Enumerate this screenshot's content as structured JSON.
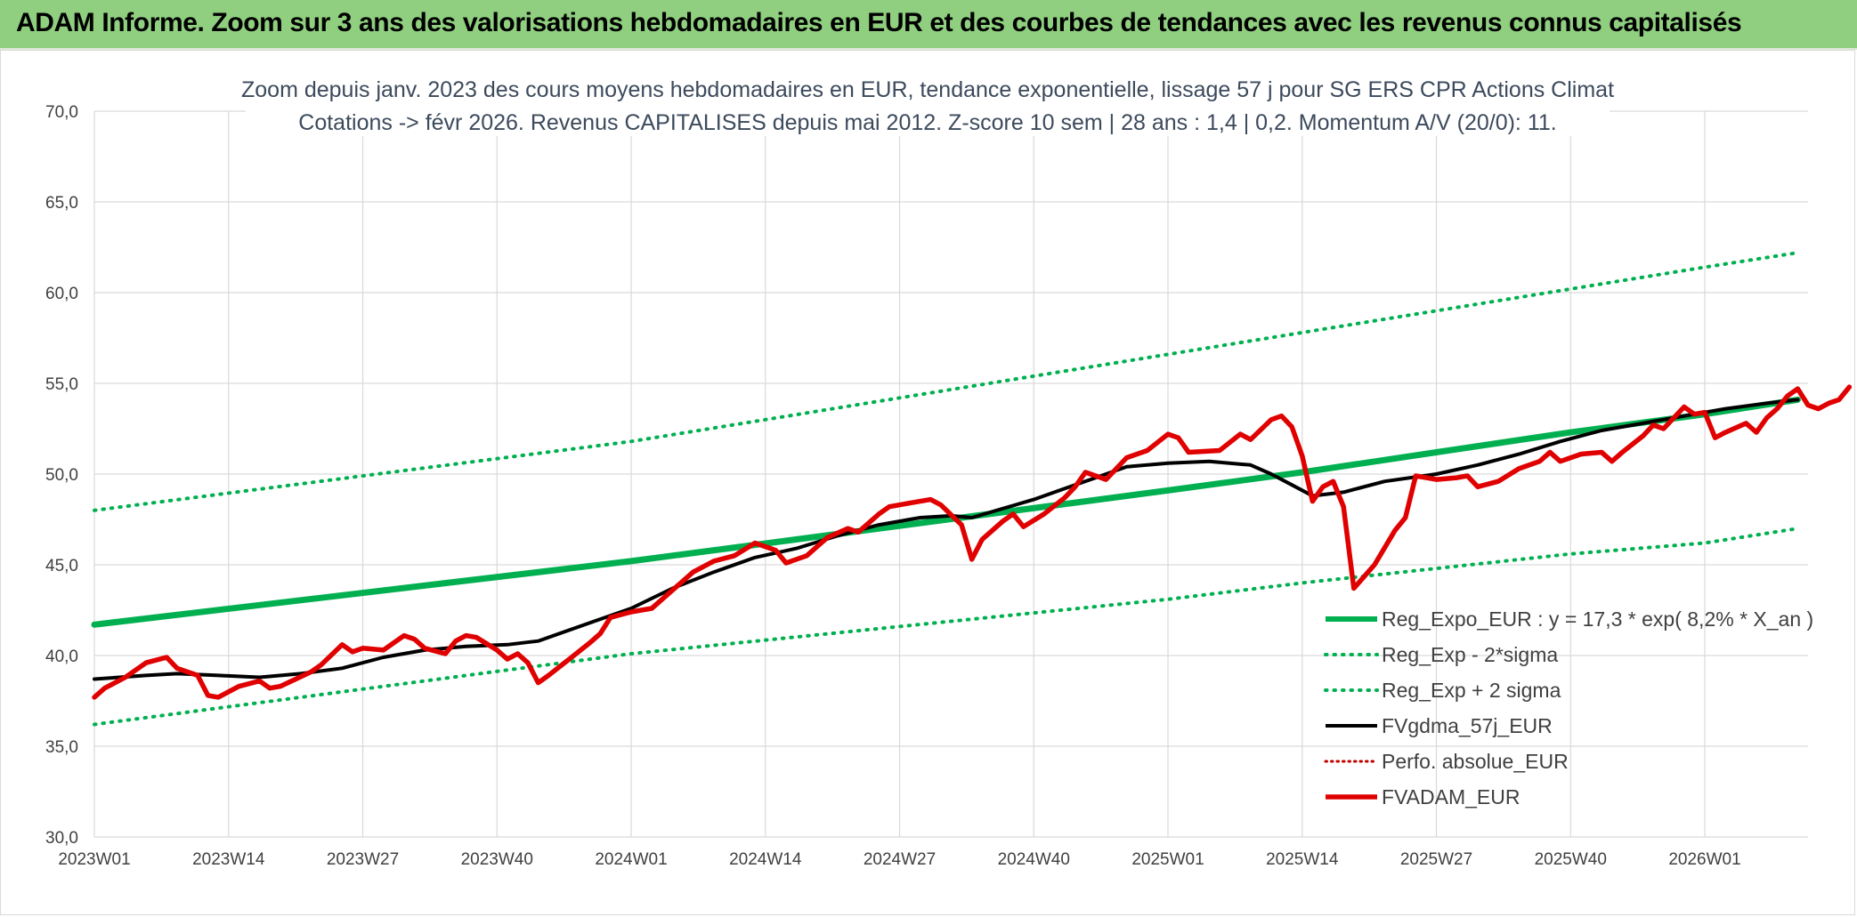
{
  "header": {
    "title": "ADAM Informe. Zoom sur 3 ans des valorisations hebdomadaires en EUR et des courbes de tendances avec les revenus connus capitalisés"
  },
  "colors": {
    "header_bg": "#8fcf7f",
    "regression": "#00b050",
    "bands": "#00b050",
    "smoothed": "#000000",
    "fvadam": "#e00000",
    "perf_absolue": "#c00000"
  },
  "chart_data": {
    "type": "line",
    "title": "Zoom depuis janv. 2023 des cours moyens hebdomadaires en EUR, tendance exponentielle, lissage 57 j pour SG ERS CPR Actions Climat",
    "subtitle": "Cotations -> févr 2026. Revenus CAPITALISES depuis mai 2012. Z-score 10 sem | 28 ans : 1,4 | 0,2. Momentum A/V (20/0): 11.",
    "ylim": [
      30,
      70
    ],
    "yticks": [
      "30,0",
      "35,0",
      "40,0",
      "45,0",
      "50,0",
      "55,0",
      "60,0",
      "65,0",
      "70,0"
    ],
    "x_range_weeks": [
      0,
      166
    ],
    "xticks": [
      {
        "label": "2023W01",
        "week": 0
      },
      {
        "label": "2023W14",
        "week": 13
      },
      {
        "label": "2023W27",
        "week": 26
      },
      {
        "label": "2023W40",
        "week": 39
      },
      {
        "label": "2024W01",
        "week": 52
      },
      {
        "label": "2024W14",
        "week": 65
      },
      {
        "label": "2024W27",
        "week": 78
      },
      {
        "label": "2024W40",
        "week": 91
      },
      {
        "label": "2025W01",
        "week": 104
      },
      {
        "label": "2025W14",
        "week": 117
      },
      {
        "label": "2025W27",
        "week": 130
      },
      {
        "label": "2025W40",
        "week": 143
      },
      {
        "label": "2026W01",
        "week": 156
      }
    ],
    "grid": true,
    "legend_position": "bottom-right",
    "series": [
      {
        "name": "Reg_Expo_EUR : y = 17,3 * exp( 8,2% *  X_an )",
        "style": "thick-solid",
        "points": [
          [
            0,
            41.7
          ],
          [
            52,
            45.2
          ],
          [
            104,
            49.1
          ],
          [
            117,
            50.1
          ],
          [
            130,
            51.2
          ],
          [
            143,
            52.3
          ],
          [
            156,
            53.3
          ],
          [
            165,
            54.1
          ]
        ]
      },
      {
        "name": "Reg_Exp - 2*sigma",
        "style": "dotted",
        "points": [
          [
            0,
            36.2
          ],
          [
            52,
            40.1
          ],
          [
            104,
            43.1
          ],
          [
            117,
            44.0
          ],
          [
            130,
            44.8
          ],
          [
            143,
            45.6
          ],
          [
            156,
            46.2
          ],
          [
            165,
            47.0
          ]
        ]
      },
      {
        "name": "Reg_Exp + 2 sigma",
        "style": "dotted",
        "points": [
          [
            0,
            48.0
          ],
          [
            52,
            51.8
          ],
          [
            104,
            56.6
          ],
          [
            117,
            57.8
          ],
          [
            130,
            59.0
          ],
          [
            143,
            60.2
          ],
          [
            156,
            61.4
          ],
          [
            165,
            62.2
          ]
        ]
      },
      {
        "name": "FVgdma_57j_EUR",
        "style": "solid",
        "points": [
          [
            0,
            38.7
          ],
          [
            5,
            38.9
          ],
          [
            8,
            39.0
          ],
          [
            12,
            38.9
          ],
          [
            16,
            38.8
          ],
          [
            20,
            39.0
          ],
          [
            24,
            39.3
          ],
          [
            28,
            39.9
          ],
          [
            32,
            40.3
          ],
          [
            36,
            40.5
          ],
          [
            40,
            40.6
          ],
          [
            43,
            40.8
          ],
          [
            48,
            41.8
          ],
          [
            52,
            42.6
          ],
          [
            56,
            43.7
          ],
          [
            60,
            44.6
          ],
          [
            64,
            45.4
          ],
          [
            68,
            45.9
          ],
          [
            72,
            46.6
          ],
          [
            76,
            47.2
          ],
          [
            80,
            47.6
          ],
          [
            83,
            47.7
          ],
          [
            85,
            47.6
          ],
          [
            88,
            48.1
          ],
          [
            91,
            48.6
          ],
          [
            94,
            49.2
          ],
          [
            97,
            49.8
          ],
          [
            100,
            50.4
          ],
          [
            104,
            50.6
          ],
          [
            108,
            50.7
          ],
          [
            112,
            50.5
          ],
          [
            114,
            50.0
          ],
          [
            116,
            49.4
          ],
          [
            118,
            48.8
          ],
          [
            121,
            49.0
          ],
          [
            125,
            49.6
          ],
          [
            130,
            50.0
          ],
          [
            134,
            50.5
          ],
          [
            138,
            51.1
          ],
          [
            142,
            51.8
          ],
          [
            146,
            52.4
          ],
          [
            150,
            52.8
          ],
          [
            154,
            53.2
          ],
          [
            158,
            53.6
          ],
          [
            162,
            53.9
          ],
          [
            165,
            54.1
          ]
        ]
      },
      {
        "name": "Perfo. absolue_EUR",
        "style": "dotted"
      },
      {
        "name": "FVADAM_EUR",
        "style": "thick-solid",
        "points": [
          [
            0,
            37.7
          ],
          [
            1,
            38.2
          ],
          [
            3,
            38.8
          ],
          [
            5,
            39.6
          ],
          [
            7,
            39.9
          ],
          [
            8,
            39.3
          ],
          [
            10,
            38.9
          ],
          [
            11,
            37.8
          ],
          [
            12,
            37.7
          ],
          [
            14,
            38.3
          ],
          [
            16,
            38.6
          ],
          [
            17,
            38.2
          ],
          [
            18,
            38.3
          ],
          [
            21,
            39.1
          ],
          [
            22,
            39.5
          ],
          [
            24,
            40.6
          ],
          [
            25,
            40.2
          ],
          [
            26,
            40.4
          ],
          [
            28,
            40.3
          ],
          [
            30,
            41.1
          ],
          [
            31,
            40.9
          ],
          [
            32,
            40.4
          ],
          [
            34,
            40.1
          ],
          [
            35,
            40.8
          ],
          [
            36,
            41.1
          ],
          [
            37,
            41.0
          ],
          [
            39,
            40.3
          ],
          [
            40,
            39.8
          ],
          [
            41,
            40.1
          ],
          [
            42,
            39.6
          ],
          [
            43,
            38.5
          ],
          [
            44,
            38.9
          ],
          [
            46,
            39.8
          ],
          [
            48,
            40.7
          ],
          [
            49,
            41.2
          ],
          [
            50,
            42.1
          ],
          [
            52,
            42.4
          ],
          [
            54,
            42.6
          ],
          [
            56,
            43.6
          ],
          [
            58,
            44.6
          ],
          [
            60,
            45.2
          ],
          [
            62,
            45.5
          ],
          [
            64,
            46.2
          ],
          [
            65,
            46.0
          ],
          [
            66,
            45.8
          ],
          [
            67,
            45.1
          ],
          [
            69,
            45.5
          ],
          [
            71,
            46.5
          ],
          [
            73,
            47.0
          ],
          [
            74,
            46.8
          ],
          [
            76,
            47.8
          ],
          [
            77,
            48.2
          ],
          [
            79,
            48.4
          ],
          [
            81,
            48.6
          ],
          [
            82,
            48.3
          ],
          [
            84,
            47.2
          ],
          [
            85,
            45.3
          ],
          [
            86,
            46.4
          ],
          [
            88,
            47.4
          ],
          [
            89,
            47.8
          ],
          [
            90,
            47.1
          ],
          [
            92,
            47.8
          ],
          [
            94,
            48.7
          ],
          [
            95,
            49.3
          ],
          [
            96,
            50.1
          ],
          [
            98,
            49.7
          ],
          [
            100,
            50.9
          ],
          [
            102,
            51.3
          ],
          [
            104,
            52.2
          ],
          [
            105,
            52.0
          ],
          [
            106,
            51.2
          ],
          [
            109,
            51.3
          ],
          [
            111,
            52.2
          ],
          [
            112,
            51.9
          ],
          [
            114,
            53.0
          ],
          [
            115,
            53.2
          ],
          [
            116,
            52.6
          ],
          [
            117,
            51.0
          ],
          [
            118,
            48.5
          ],
          [
            119,
            49.3
          ],
          [
            120,
            49.6
          ],
          [
            121,
            48.2
          ],
          [
            122,
            43.7
          ],
          [
            124,
            45.0
          ],
          [
            126,
            46.9
          ],
          [
            127,
            47.6
          ],
          [
            128,
            49.9
          ],
          [
            130,
            49.7
          ],
          [
            132,
            49.8
          ],
          [
            133,
            49.9
          ],
          [
            134,
            49.3
          ],
          [
            136,
            49.6
          ],
          [
            138,
            50.3
          ],
          [
            140,
            50.7
          ],
          [
            141,
            51.2
          ],
          [
            142,
            50.7
          ],
          [
            144,
            51.1
          ],
          [
            146,
            51.2
          ],
          [
            147,
            50.7
          ],
          [
            148,
            51.2
          ],
          [
            150,
            52.1
          ],
          [
            151,
            52.7
          ],
          [
            152,
            52.5
          ],
          [
            154,
            53.7
          ],
          [
            155,
            53.3
          ],
          [
            156,
            53.4
          ],
          [
            157,
            52.0
          ],
          [
            158,
            52.3
          ],
          [
            160,
            52.8
          ],
          [
            161,
            52.3
          ],
          [
            162,
            53.1
          ],
          [
            163,
            53.6
          ],
          [
            164,
            54.3
          ],
          [
            165,
            54.7
          ],
          [
            166,
            53.8
          ],
          [
            167,
            53.6
          ],
          [
            168,
            53.9
          ],
          [
            169,
            54.1
          ],
          [
            170,
            54.8
          ]
        ]
      }
    ]
  }
}
